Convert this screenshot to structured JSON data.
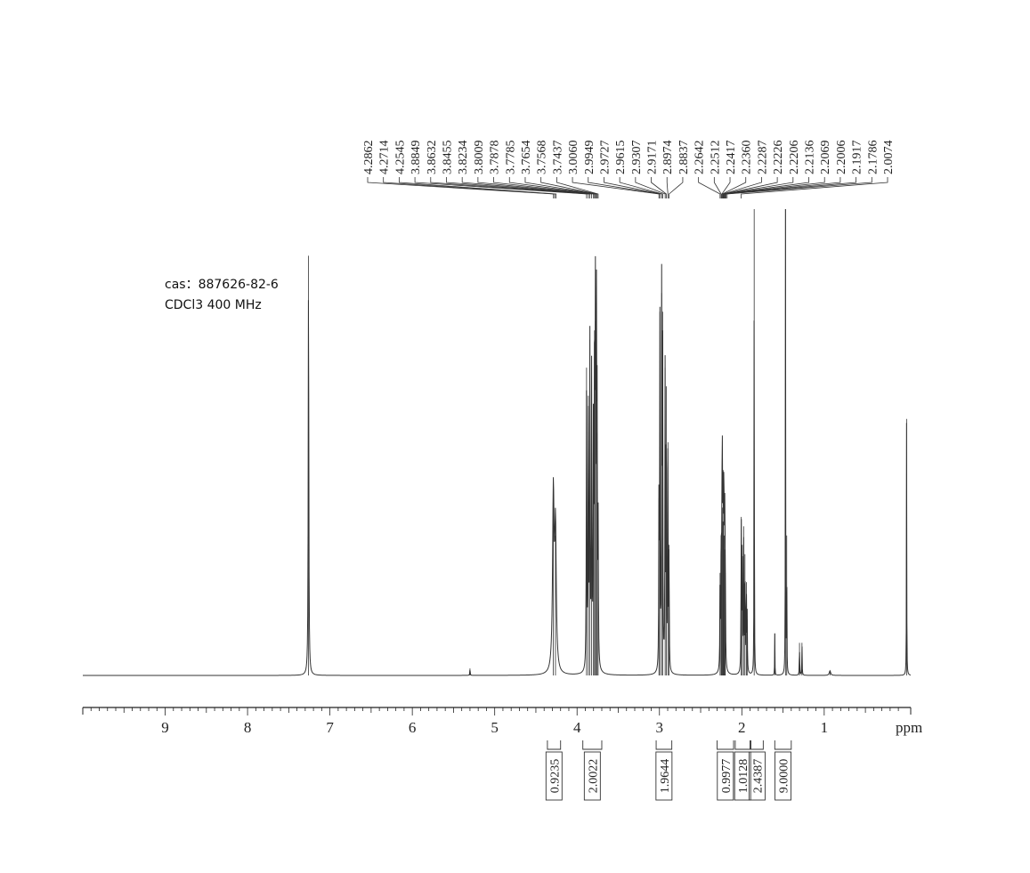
{
  "meta": {
    "cas_line": "cas：887626-82-6",
    "conditions_line": "CDCl3   400  MHz"
  },
  "chart_data": {
    "type": "line",
    "title": "",
    "xlabel": "ppm",
    "ylabel": "",
    "xlim": [
      10.0,
      -0.05
    ],
    "x_reversed": true,
    "grid": false,
    "x_ticks": [
      9,
      8,
      7,
      6,
      5,
      4,
      3,
      2,
      1
    ],
    "x_tick_labels": [
      "9",
      "8",
      "7",
      "6",
      "5",
      "4",
      "3",
      "2",
      "1"
    ],
    "peak_labels": [
      "4.2862",
      "4.2714",
      "4.2545",
      "3.8849",
      "3.8632",
      "3.8455",
      "3.8234",
      "3.8009",
      "3.7878",
      "3.7785",
      "3.7654",
      "3.7568",
      "3.7437",
      "3.0060",
      "2.9949",
      "2.9727",
      "2.9615",
      "2.9307",
      "2.9171",
      "2.8974",
      "2.8837",
      "2.2642",
      "2.2512",
      "2.2417",
      "2.2360",
      "2.2287",
      "2.2226",
      "2.2206",
      "2.2136",
      "2.2069",
      "2.2006",
      "2.1917",
      "2.1786",
      "2.0074"
    ],
    "peaks": [
      {
        "ppm": 7.26,
        "height": 0.9,
        "width": 0.008
      },
      {
        "ppm": 5.3,
        "height": 0.015,
        "width": 0.006
      },
      {
        "ppm": 4.288,
        "height": 0.38,
        "width": 0.022
      },
      {
        "ppm": 4.262,
        "height": 0.3,
        "width": 0.022
      },
      {
        "ppm": 3.885,
        "height": 0.66,
        "width": 0.007
      },
      {
        "ppm": 3.864,
        "height": 0.6,
        "width": 0.007
      },
      {
        "ppm": 3.845,
        "height": 0.72,
        "width": 0.007
      },
      {
        "ppm": 3.823,
        "height": 0.64,
        "width": 0.007
      },
      {
        "ppm": 3.801,
        "height": 0.58,
        "width": 0.007
      },
      {
        "ppm": 3.788,
        "height": 0.74,
        "width": 0.007
      },
      {
        "ppm": 3.778,
        "height": 0.76,
        "width": 0.007
      },
      {
        "ppm": 3.765,
        "height": 0.7,
        "width": 0.007
      },
      {
        "ppm": 3.757,
        "height": 0.52,
        "width": 0.007
      },
      {
        "ppm": 3.744,
        "height": 0.3,
        "width": 0.007
      },
      {
        "ppm": 3.006,
        "height": 0.38,
        "width": 0.006
      },
      {
        "ppm": 2.995,
        "height": 0.78,
        "width": 0.006
      },
      {
        "ppm": 2.973,
        "height": 0.82,
        "width": 0.006
      },
      {
        "ppm": 2.962,
        "height": 0.78,
        "width": 0.006
      },
      {
        "ppm": 2.931,
        "height": 0.66,
        "width": 0.006
      },
      {
        "ppm": 2.917,
        "height": 0.62,
        "width": 0.006
      },
      {
        "ppm": 2.897,
        "height": 0.5,
        "width": 0.006
      },
      {
        "ppm": 2.884,
        "height": 0.28,
        "width": 0.006
      },
      {
        "ppm": 2.264,
        "height": 0.22,
        "width": 0.006
      },
      {
        "ppm": 2.251,
        "height": 0.3,
        "width": 0.006
      },
      {
        "ppm": 2.242,
        "height": 0.34,
        "width": 0.006
      },
      {
        "ppm": 2.236,
        "height": 0.36,
        "width": 0.006
      },
      {
        "ppm": 2.229,
        "height": 0.33,
        "width": 0.006
      },
      {
        "ppm": 2.221,
        "height": 0.36,
        "width": 0.006
      },
      {
        "ppm": 2.214,
        "height": 0.3,
        "width": 0.006
      },
      {
        "ppm": 2.207,
        "height": 0.27,
        "width": 0.006
      },
      {
        "ppm": 2.201,
        "height": 0.22,
        "width": 0.006
      },
      {
        "ppm": 2.007,
        "height": 0.34,
        "width": 0.006
      },
      {
        "ppm": 1.995,
        "height": 0.28,
        "width": 0.006
      },
      {
        "ppm": 1.978,
        "height": 0.32,
        "width": 0.006
      },
      {
        "ppm": 1.962,
        "height": 0.26,
        "width": 0.006
      },
      {
        "ppm": 1.945,
        "height": 0.2,
        "width": 0.006
      },
      {
        "ppm": 1.935,
        "height": 0.12,
        "width": 0.006
      },
      {
        "ppm": 1.85,
        "height": 1.0,
        "width": 0.004
      },
      {
        "ppm": 1.6,
        "height": 0.09,
        "width": 0.004
      },
      {
        "ppm": 1.47,
        "height": 1.0,
        "width": 0.004
      },
      {
        "ppm": 1.455,
        "height": 0.3,
        "width": 0.004
      },
      {
        "ppm": 1.3,
        "height": 0.07,
        "width": 0.005
      },
      {
        "ppm": 1.27,
        "height": 0.07,
        "width": 0.005
      },
      {
        "ppm": 0.93,
        "height": 0.01,
        "width": 0.02
      },
      {
        "ppm": 0.0,
        "height": 0.55,
        "width": 0.004
      }
    ],
    "integrals": [
      {
        "label": "0.9235",
        "from": 4.36,
        "to": 4.2
      },
      {
        "label": "2.0022",
        "from": 3.93,
        "to": 3.7
      },
      {
        "label": "1.9644",
        "from": 3.04,
        "to": 2.85
      },
      {
        "label": "0.9977",
        "from": 2.3,
        "to": 2.1
      },
      {
        "label": "1.0128",
        "from": 2.08,
        "to": 1.9
      },
      {
        "label": "2.4387",
        "from": 1.89,
        "to": 1.74
      },
      {
        "label": "9.0000",
        "from": 1.6,
        "to": 1.4
      }
    ]
  }
}
